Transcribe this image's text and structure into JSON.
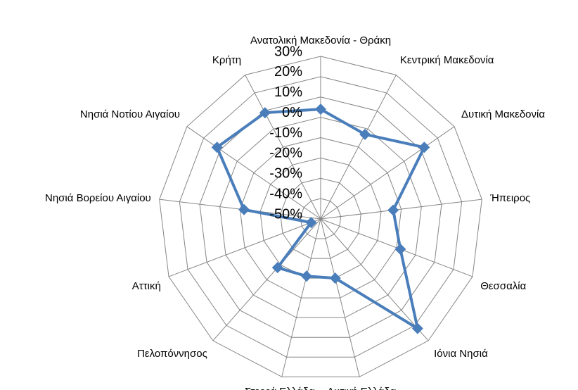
{
  "chart_data": {
    "type": "radar",
    "categories": [
      "Ανατολική Μακεδονία - Θράκη",
      "Κεντρική Μακεδονία",
      "Δυτική Μακεδονία",
      "Ήπειρος",
      "Θεσσαλία",
      "Ιόνια Νησιά",
      "Δυτική Ελλάδα",
      "Στερεά Ελλάδα",
      "Πελοπόννησος",
      "Αττική",
      "Νησιά Βορείου Αιγαίου",
      "Νησιά Νοτίου Αιγαίου",
      "Κρήτη"
    ],
    "values": [
      4,
      -3,
      12,
      -14,
      -8,
      22,
      -20,
      -21,
      -18,
      -45,
      -12,
      12,
      9
    ],
    "color": "#4a7ebb",
    "ylim": [
      -50,
      30
    ],
    "yticks": [
      {
        "value": -50,
        "label": "-50%"
      },
      {
        "value": -40,
        "label": "-40%"
      },
      {
        "value": -30,
        "label": "-30%"
      },
      {
        "value": -20,
        "label": "-20%"
      },
      {
        "value": -10,
        "label": "-10%"
      },
      {
        "value": 0,
        "label": "0%"
      },
      {
        "value": 10,
        "label": "10%"
      },
      {
        "value": 20,
        "label": "20%"
      },
      {
        "value": 30,
        "label": "30%"
      }
    ],
    "grid": true
  }
}
